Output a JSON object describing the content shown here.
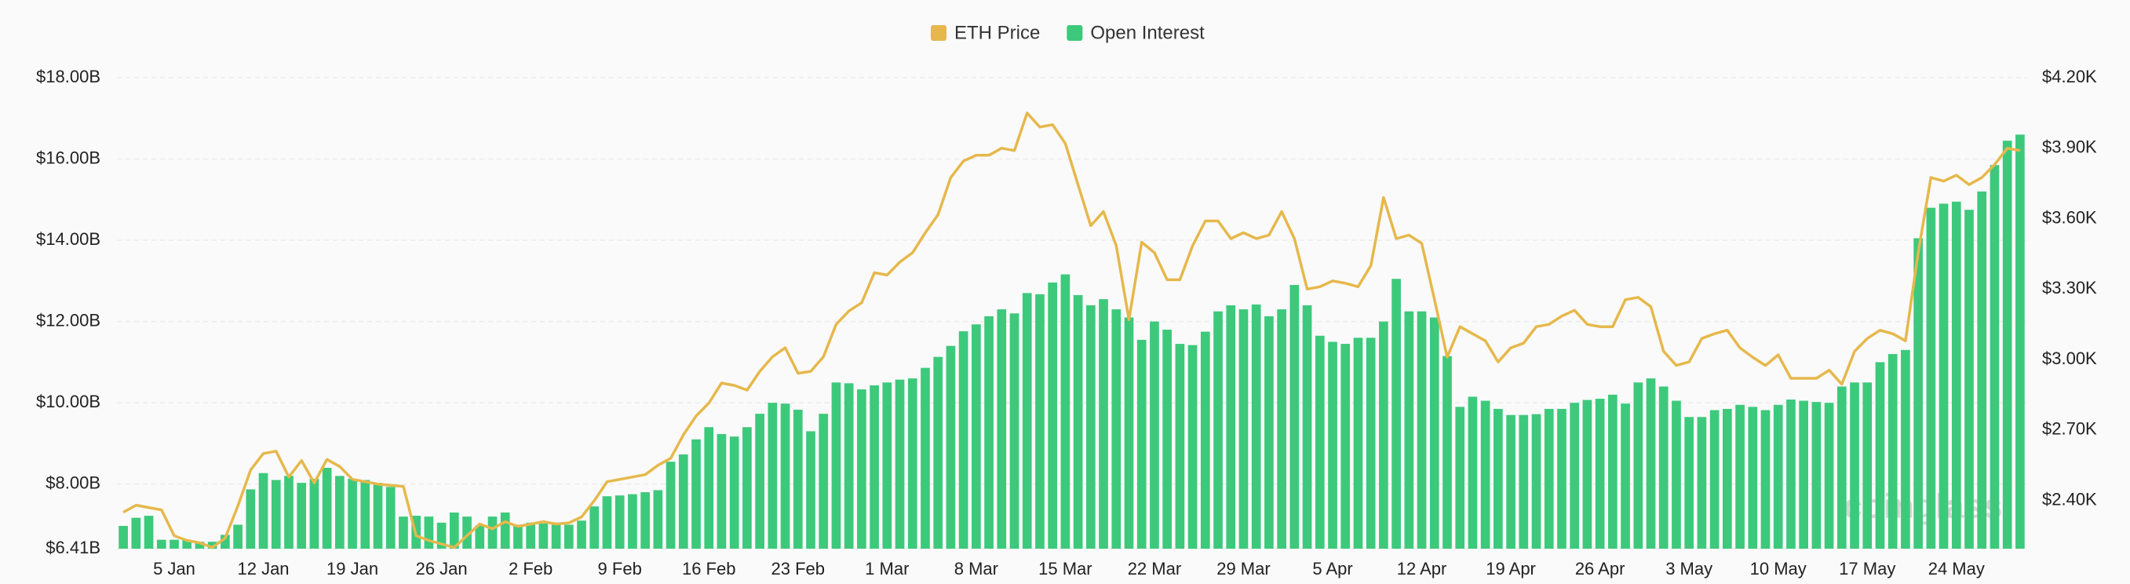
{
  "chart_data": {
    "type": "bar",
    "watermark": "coinglass",
    "categories": [
      null,
      null,
      null,
      null,
      "5 Jan",
      null,
      null,
      null,
      null,
      null,
      null,
      "12 Jan",
      null,
      null,
      null,
      null,
      null,
      null,
      "19 Jan",
      null,
      null,
      null,
      null,
      null,
      null,
      "26 Jan",
      null,
      null,
      null,
      null,
      null,
      null,
      "2 Feb",
      null,
      null,
      null,
      null,
      null,
      null,
      "9 Feb",
      null,
      null,
      null,
      null,
      null,
      null,
      "16 Feb",
      null,
      null,
      null,
      null,
      null,
      null,
      "23 Feb",
      null,
      null,
      null,
      null,
      null,
      null,
      "1 Mar",
      null,
      null,
      null,
      null,
      null,
      null,
      "8 Mar",
      null,
      null,
      null,
      null,
      null,
      null,
      "15 Mar",
      null,
      null,
      null,
      null,
      null,
      null,
      "22 Mar",
      null,
      null,
      null,
      null,
      null,
      null,
      "29 Mar",
      null,
      null,
      null,
      null,
      null,
      null,
      "5 Apr",
      null,
      null,
      null,
      null,
      null,
      null,
      "12 Apr",
      null,
      null,
      null,
      null,
      null,
      null,
      "19 Apr",
      null,
      null,
      null,
      null,
      null,
      null,
      "26 Apr",
      null,
      null,
      null,
      null,
      null,
      null,
      "3 May",
      null,
      null,
      null,
      null,
      null,
      null,
      "10 May",
      null,
      null,
      null,
      null,
      null,
      null,
      "17 May",
      null,
      null,
      null,
      null,
      null,
      null,
      "24 May",
      null,
      null,
      null,
      null,
      null
    ],
    "series": [
      {
        "name": "ETH Price",
        "type": "line",
        "axis": "y2",
        "color": "#e6b84c",
        "values": [
          2350,
          2380,
          2370,
          2360,
          2250,
          2230,
          2220,
          2200,
          2240,
          2377,
          2530,
          2600,
          2610,
          2500,
          2570,
          2475,
          2575,
          2545,
          2490,
          2480,
          2470,
          2465,
          2460,
          2250,
          2230,
          2215,
          2200,
          2250,
          2300,
          2280,
          2310,
          2290,
          2300,
          2310,
          2300,
          2305,
          2330,
          2400,
          2480,
          2490,
          2500,
          2510,
          2550,
          2580,
          2680,
          2760,
          2815,
          2900,
          2890,
          2870,
          2950,
          3012,
          3050,
          2942,
          2950,
          3012,
          3150,
          3207,
          3242,
          3370,
          3360,
          3415,
          3455,
          3540,
          3617,
          3775,
          3845,
          3870,
          3870,
          3900,
          3890,
          4050,
          3990,
          4000,
          3920,
          3745,
          3570,
          3630,
          3485,
          3170,
          3500,
          3455,
          3340,
          3340,
          3485,
          3590,
          3590,
          3515,
          3540,
          3515,
          3530,
          3630,
          3515,
          3300,
          3310,
          3335,
          3325,
          3310,
          3400,
          3690,
          3515,
          3530,
          3495,
          3255,
          3010,
          3140,
          3110,
          3080,
          2990,
          3050,
          3070,
          3140,
          3150,
          3185,
          3210,
          3150,
          3140,
          3140,
          3255,
          3265,
          3225,
          3035,
          2975,
          2990,
          3090,
          3110,
          3125,
          3050,
          3010,
          2975,
          3020,
          2920,
          2920,
          2920,
          2955,
          2895,
          3035,
          3090,
          3125,
          3110,
          3080,
          3455,
          3775,
          3760,
          3785,
          3745,
          3775,
          3830,
          3900,
          3890
        ]
      },
      {
        "name": "Open Interest",
        "type": "bar",
        "axis": "y",
        "color": "#3dc97b",
        "values": [
          6.97,
          7.17,
          7.22,
          6.63,
          6.63,
          6.62,
          6.58,
          6.58,
          6.75,
          7.0,
          7.87,
          8.27,
          8.1,
          8.2,
          8.03,
          8.13,
          8.4,
          8.2,
          8.13,
          8.1,
          8.03,
          7.93,
          7.2,
          7.22,
          7.2,
          7.05,
          7.3,
          7.2,
          6.98,
          7.2,
          7.3,
          7.0,
          7.05,
          7.03,
          7.05,
          7.0,
          7.1,
          7.45,
          7.7,
          7.72,
          7.75,
          7.8,
          7.85,
          8.55,
          8.73,
          9.1,
          9.4,
          9.23,
          9.17,
          9.4,
          9.73,
          10.0,
          9.98,
          9.83,
          9.3,
          9.73,
          10.5,
          10.48,
          10.33,
          10.43,
          10.5,
          10.57,
          10.6,
          10.86,
          11.13,
          11.4,
          11.76,
          11.93,
          12.13,
          12.3,
          12.2,
          12.7,
          12.67,
          12.96,
          13.16,
          12.65,
          12.4,
          12.55,
          12.3,
          12.1,
          11.55,
          12.0,
          11.8,
          11.45,
          11.42,
          11.75,
          12.25,
          12.4,
          12.3,
          12.42,
          12.13,
          12.3,
          12.9,
          12.4,
          11.65,
          11.5,
          11.45,
          11.6,
          11.6,
          12.0,
          13.05,
          12.25,
          12.25,
          12.1,
          11.15,
          9.9,
          10.15,
          10.05,
          9.85,
          9.7,
          9.7,
          9.72,
          9.85,
          9.85,
          10.0,
          10.07,
          10.1,
          10.2,
          9.98,
          10.5,
          10.6,
          10.4,
          10.05,
          9.65,
          9.65,
          9.82,
          9.85,
          9.95,
          9.9,
          9.82,
          9.95,
          10.08,
          10.05,
          10.02,
          10.0,
          10.4,
          10.5,
          10.5,
          11.0,
          11.2,
          11.3,
          14.05,
          14.8,
          14.9,
          14.95,
          14.75,
          15.2,
          15.85,
          16.45,
          16.6
        ]
      }
    ],
    "ylim": [
      6.41,
      18
    ],
    "yticks": [
      {
        "value": 6.41,
        "label": "$6.41B"
      },
      {
        "value": 8,
        "label": "$8.00B"
      },
      {
        "value": 10,
        "label": "$10.00B"
      },
      {
        "value": 12,
        "label": "$12.00B"
      },
      {
        "value": 14,
        "label": "$14.00B"
      },
      {
        "value": 16,
        "label": "$16.00B"
      },
      {
        "value": 18,
        "label": "$18.00B"
      }
    ],
    "y2lim": [
      2195,
      4200
    ],
    "y2ticks": [
      {
        "value": 2400,
        "label": "$2.40K"
      },
      {
        "value": 2700,
        "label": "$2.70K"
      },
      {
        "value": 3000,
        "label": "$3.00K"
      },
      {
        "value": 3300,
        "label": "$3.30K"
      },
      {
        "value": 3600,
        "label": "$3.60K"
      },
      {
        "value": 3900,
        "label": "$3.90K"
      },
      {
        "value": 4200,
        "label": "$4.20K"
      }
    ],
    "grid": true,
    "legend": "top"
  }
}
